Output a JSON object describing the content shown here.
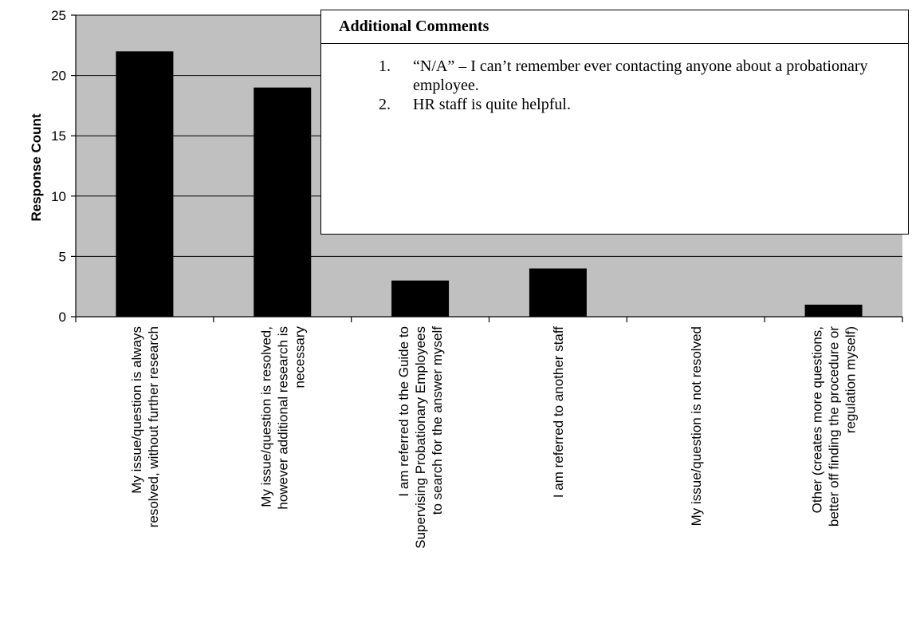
{
  "chart_data": {
    "type": "bar",
    "ylabel": "Response Count",
    "xlabel": "",
    "ylim": [
      0,
      25
    ],
    "yticks": [
      0,
      5,
      10,
      15,
      20,
      25
    ],
    "grid": true,
    "categories": [
      [
        "My issue/question is always",
        "resolved, without further research"
      ],
      [
        "My issue/question is resolved,",
        "however additional research is",
        "necessary"
      ],
      [
        "I am referred to the Guide to",
        "Supervising Probationary Employees",
        "to search for the answer myself"
      ],
      [
        "I am referred to another staff"
      ],
      [
        "My issue/question is not resolved"
      ],
      [
        "Other (creates more questions,",
        "better off finding the procedure or",
        "regulation myself)"
      ]
    ],
    "values": [
      22,
      19,
      3,
      4,
      0,
      1
    ],
    "colors": {
      "bar": "#000000",
      "plot_bg": "#c0c0c0",
      "grid": "#000000"
    }
  },
  "comments": {
    "title": "Additional Comments",
    "items": [
      {
        "num": "1.",
        "text": "“N/A” – I can’t remember ever contacting anyone about a probationary employee."
      },
      {
        "num": "2.",
        "text": "HR staff is quite helpful."
      }
    ]
  }
}
